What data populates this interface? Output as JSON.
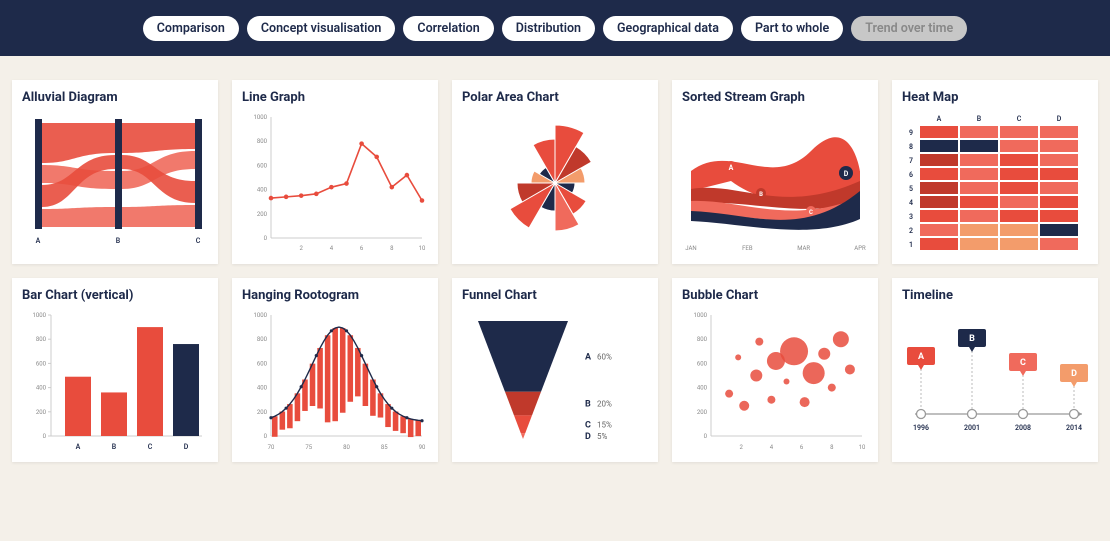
{
  "colors": {
    "header_bg": "#1e2a4a",
    "page_bg": "#f4f0e9",
    "card_bg": "#ffffff",
    "navy": "#1e2a4a",
    "red": "#e84c3d",
    "red_light": "#f06a5c",
    "red_dark": "#c0392b",
    "orange": "#f39c6b",
    "grey_tick": "#888888"
  },
  "filters": [
    {
      "label": "Comparison",
      "active": false
    },
    {
      "label": "Concept visualisation",
      "active": false
    },
    {
      "label": "Correlation",
      "active": false
    },
    {
      "label": "Distribution",
      "active": false
    },
    {
      "label": "Geographical data",
      "active": false
    },
    {
      "label": "Part to whole",
      "active": false
    },
    {
      "label": "Trend over time",
      "active": true
    }
  ],
  "cards": {
    "alluvial": {
      "title": "Alluvial Diagram",
      "x_labels": [
        "A",
        "B",
        "C"
      ]
    },
    "line": {
      "title": "Line Graph",
      "y_ticks": [
        0,
        200,
        400,
        600,
        800,
        1000
      ],
      "x_ticks": [
        2,
        4,
        6,
        8,
        10
      ],
      "points": [
        [
          0,
          330
        ],
        [
          1,
          340
        ],
        [
          2,
          350
        ],
        [
          3,
          365
        ],
        [
          4,
          420
        ],
        [
          5,
          450
        ],
        [
          6,
          780
        ],
        [
          7,
          670
        ],
        [
          8,
          420
        ],
        [
          9,
          520
        ],
        [
          10,
          310
        ]
      ]
    },
    "polar": {
      "title": "Polar Area Chart",
      "slices": [
        {
          "r": 58,
          "color": "#e84c3d"
        },
        {
          "r": 42,
          "color": "#c0392b"
        },
        {
          "r": 30,
          "color": "#f39c6b"
        },
        {
          "r": 20,
          "color": "#1e2a4a"
        },
        {
          "r": 36,
          "color": "#e84c3d"
        },
        {
          "r": 48,
          "color": "#f06a5c"
        },
        {
          "r": 28,
          "color": "#1e2a4a"
        },
        {
          "r": 52,
          "color": "#e84c3d"
        },
        {
          "r": 38,
          "color": "#c0392b"
        },
        {
          "r": 24,
          "color": "#f39c6b"
        },
        {
          "r": 18,
          "color": "#1e2a4a"
        },
        {
          "r": 44,
          "color": "#e84c3d"
        }
      ]
    },
    "stream": {
      "title": "Sorted Stream Graph",
      "x_labels": [
        "JAN",
        "FEB",
        "MAR",
        "APR"
      ],
      "series_labels": [
        "A",
        "B",
        "C",
        "D"
      ]
    },
    "heatmap": {
      "title": "Heat Map",
      "cols": [
        "A",
        "B",
        "C",
        "D"
      ],
      "rows": [
        "9",
        "8",
        "7",
        "6",
        "5",
        "4",
        "3",
        "2",
        "1"
      ],
      "cells": [
        [
          "#e84c3d",
          "#f06a5c",
          "#f06a5c",
          "#f06a5c"
        ],
        [
          "#1e2a4a",
          "#1e2a4a",
          "#f06a5c",
          "#f06a5c"
        ],
        [
          "#c0392b",
          "#f06a5c",
          "#e84c3d",
          "#f06a5c"
        ],
        [
          "#e84c3d",
          "#f06a5c",
          "#e84c3d",
          "#e84c3d"
        ],
        [
          "#c0392b",
          "#f06a5c",
          "#e84c3d",
          "#f06a5c"
        ],
        [
          "#c0392b",
          "#e84c3d",
          "#f06a5c",
          "#e84c3d"
        ],
        [
          "#e84c3d",
          "#f06a5c",
          "#e84c3d",
          "#e84c3d"
        ],
        [
          "#f06a5c",
          "#f39c6b",
          "#f39c6b",
          "#1e2a4a"
        ],
        [
          "#e84c3d",
          "#f39c6b",
          "#f39c6b",
          "#f06a5c"
        ]
      ]
    },
    "bar": {
      "title": "Bar Chart (vertical)",
      "y_ticks": [
        0,
        200,
        400,
        600,
        800,
        1000
      ],
      "bars": [
        {
          "label": "A",
          "value": 490,
          "color": "#e84c3d"
        },
        {
          "label": "B",
          "value": 360,
          "color": "#e84c3d"
        },
        {
          "label": "C",
          "value": 900,
          "color": "#e84c3d"
        },
        {
          "label": "D",
          "value": 760,
          "color": "#1e2a4a"
        }
      ]
    },
    "rootogram": {
      "title": "Hanging Rootogram",
      "y_ticks": [
        0,
        200,
        400,
        600,
        800,
        1000
      ],
      "x_ticks": [
        70,
        75,
        80,
        85,
        90
      ],
      "bars": [
        170,
        150,
        200,
        230,
        260,
        350,
        500,
        720,
        770,
        700,
        550,
        400,
        350,
        300,
        200,
        190,
        160,
        140,
        150,
        130
      ]
    },
    "funnel": {
      "title": "Funnel Chart",
      "segments": [
        {
          "label": "A",
          "pct": "60%",
          "color": "#1e2a4a"
        },
        {
          "label": "B",
          "pct": "20%",
          "color": "#c0392b"
        },
        {
          "label": "C",
          "pct": "15%",
          "color": "#e84c3d"
        },
        {
          "label": "D",
          "pct": "5%",
          "color": "#f06a5c"
        }
      ]
    },
    "bubble": {
      "title": "Bubble Chart",
      "y_ticks": [
        0,
        200,
        400,
        600,
        800,
        1000
      ],
      "x_ticks": [
        2,
        4,
        6,
        8,
        10
      ],
      "bubbles": [
        {
          "x": 1.2,
          "y": 350,
          "r": 4
        },
        {
          "x": 1.8,
          "y": 650,
          "r": 3
        },
        {
          "x": 2.2,
          "y": 250,
          "r": 5
        },
        {
          "x": 3.0,
          "y": 500,
          "r": 6
        },
        {
          "x": 3.2,
          "y": 780,
          "r": 4
        },
        {
          "x": 4.0,
          "y": 300,
          "r": 4
        },
        {
          "x": 4.3,
          "y": 620,
          "r": 9
        },
        {
          "x": 5.0,
          "y": 450,
          "r": 3
        },
        {
          "x": 5.5,
          "y": 700,
          "r": 14
        },
        {
          "x": 6.2,
          "y": 280,
          "r": 5
        },
        {
          "x": 6.8,
          "y": 520,
          "r": 11
        },
        {
          "x": 7.5,
          "y": 680,
          "r": 6
        },
        {
          "x": 8.0,
          "y": 400,
          "r": 4
        },
        {
          "x": 8.6,
          "y": 800,
          "r": 8
        },
        {
          "x": 9.2,
          "y": 550,
          "r": 5
        }
      ]
    },
    "timeline": {
      "title": "Timeline",
      "events": [
        {
          "year": "1996",
          "label": "A",
          "color": "#e84c3d",
          "y": 38
        },
        {
          "year": "2001",
          "label": "B",
          "color": "#1e2a4a",
          "y": 20
        },
        {
          "year": "2008",
          "label": "C",
          "color": "#f06a5c",
          "y": 44
        },
        {
          "year": "2014",
          "label": "D",
          "color": "#f39c6b",
          "y": 55
        }
      ]
    }
  }
}
